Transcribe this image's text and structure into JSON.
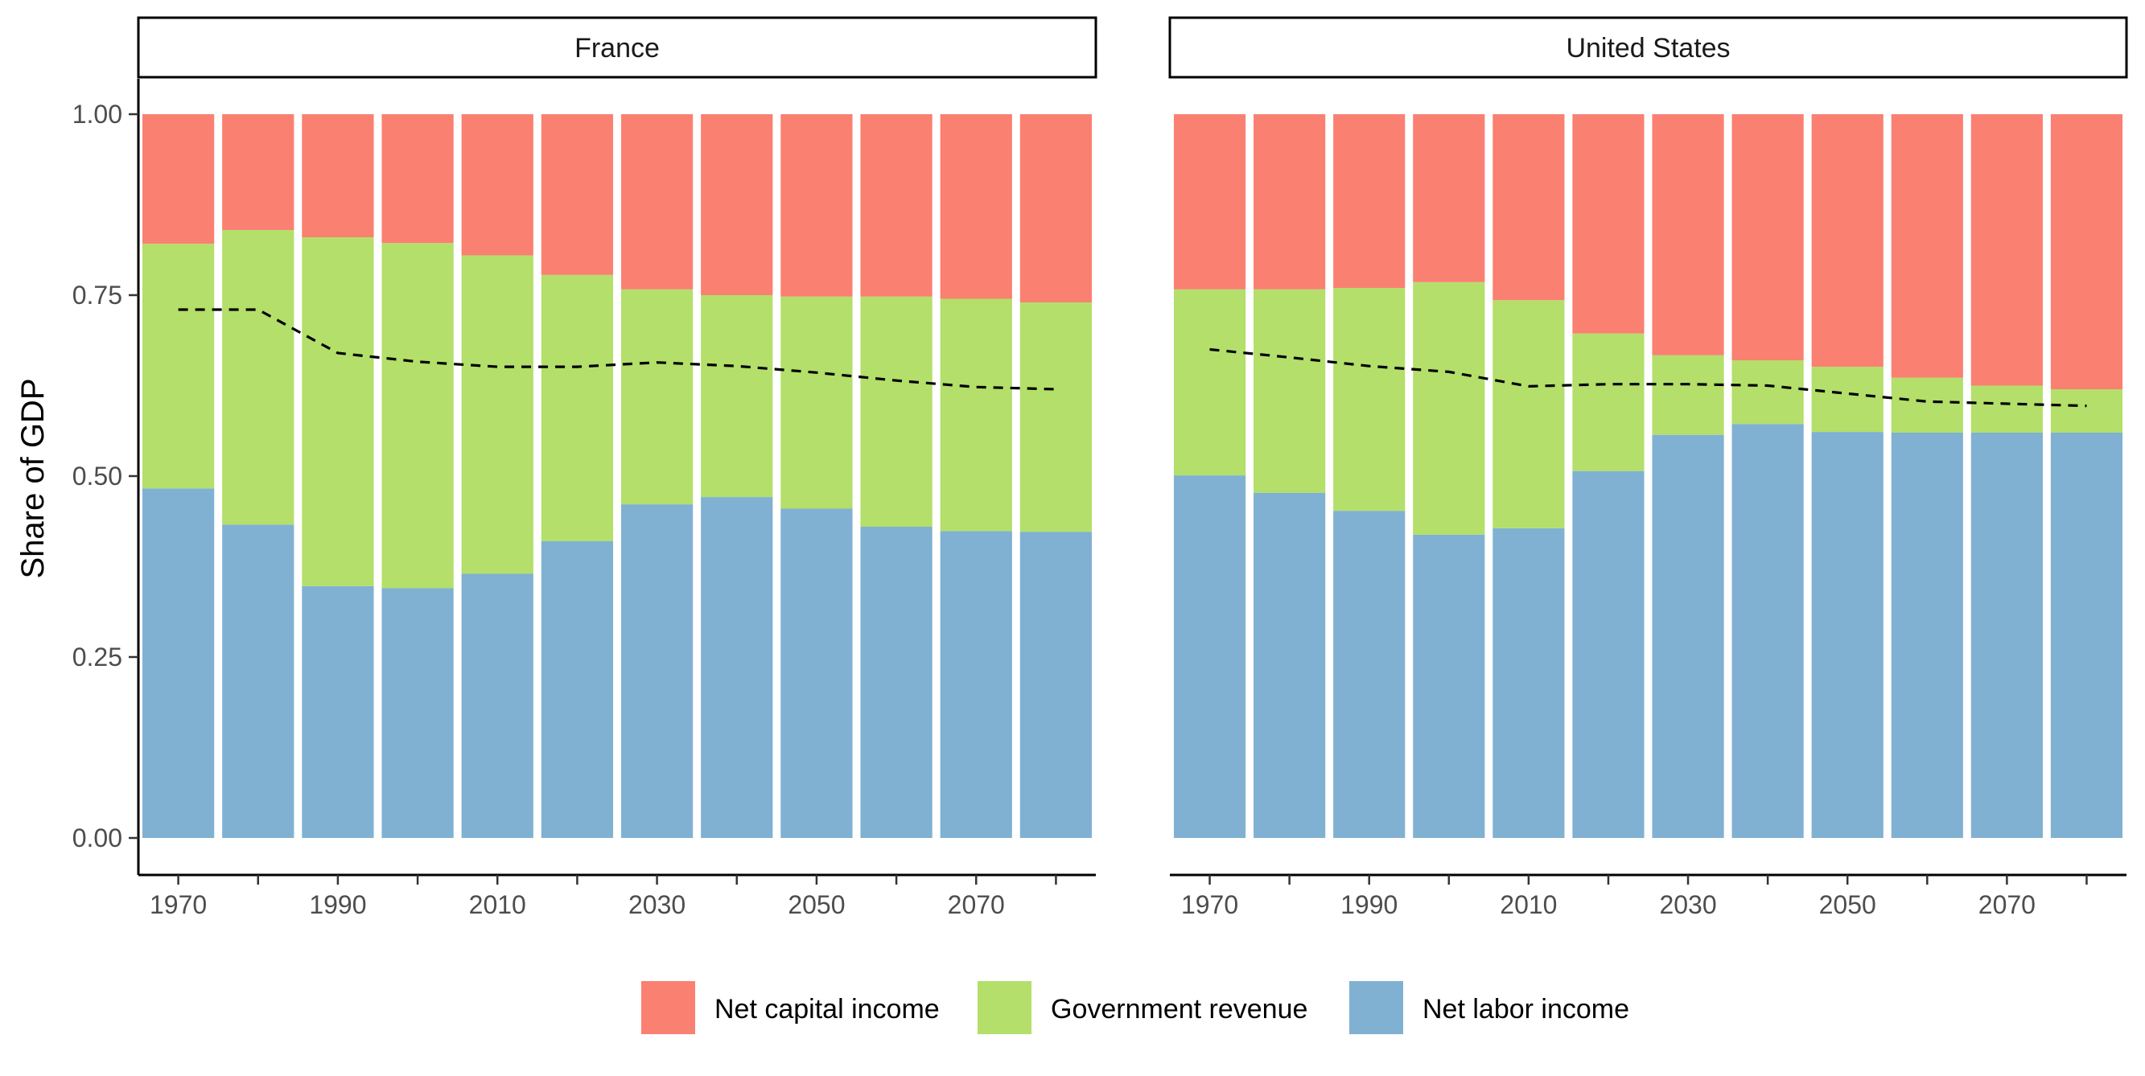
{
  "chart_data": {
    "type": "bar",
    "stacked": true,
    "ylabel": "Share of GDP",
    "xlabel": "",
    "ylim": [
      0,
      1
    ],
    "yticks": [
      0,
      0.25,
      0.5,
      0.75,
      1
    ],
    "ytick_labels": [
      "0.00",
      "0.25",
      "0.50",
      "0.75",
      "1.00"
    ],
    "x": [
      1970,
      1980,
      1990,
      2000,
      2010,
      2020,
      2030,
      2040,
      2050,
      2060,
      2070,
      2080
    ],
    "xtick_labels": [
      "1970",
      "1990",
      "2010",
      "2030",
      "2050",
      "2070"
    ],
    "xlim": [
      1965,
      2085
    ],
    "grid": false,
    "legend_position": "bottom",
    "legend": [
      {
        "label": "Net capital income",
        "color": "#F8766D"
      },
      {
        "label": "Government revenue",
        "color": "#B3DF6A"
      },
      {
        "label": "Net labor income",
        "color": "#80B1D3"
      }
    ],
    "colors": {
      "capital": "#FA8072",
      "government": "#B3DF6A",
      "labor": "#80B1D3",
      "dashed_line": "#000000"
    },
    "facets": [
      {
        "label": "France",
        "labor": [
          0.483,
          0.433,
          0.348,
          0.345,
          0.365,
          0.41,
          0.461,
          0.471,
          0.455,
          0.43,
          0.424,
          0.423
        ],
        "labor_plus_government": [
          0.821,
          0.84,
          0.83,
          0.822,
          0.805,
          0.778,
          0.758,
          0.75,
          0.748,
          0.748,
          0.745,
          0.74
        ],
        "total": [
          1,
          1,
          1,
          1,
          1,
          1,
          1,
          1,
          1,
          1,
          1,
          1
        ],
        "dashed_line": [
          0.73,
          0.73,
          0.67,
          0.658,
          0.651,
          0.651,
          0.657,
          0.652,
          0.643,
          0.632,
          0.623,
          0.62
        ]
      },
      {
        "label": "United States",
        "labor": [
          0.501,
          0.477,
          0.452,
          0.419,
          0.428,
          0.507,
          0.557,
          0.572,
          0.561,
          0.56,
          0.56,
          0.56
        ],
        "labor_plus_government": [
          0.758,
          0.758,
          0.76,
          0.768,
          0.743,
          0.697,
          0.667,
          0.66,
          0.651,
          0.636,
          0.625,
          0.62
        ],
        "total": [
          1,
          1,
          1,
          1,
          1,
          1,
          1,
          1,
          1,
          1,
          1,
          1
        ],
        "dashed_line": [
          0.675,
          0.664,
          0.652,
          0.644,
          0.624,
          0.627,
          0.627,
          0.625,
          0.614,
          0.603,
          0.6,
          0.597
        ]
      }
    ]
  }
}
